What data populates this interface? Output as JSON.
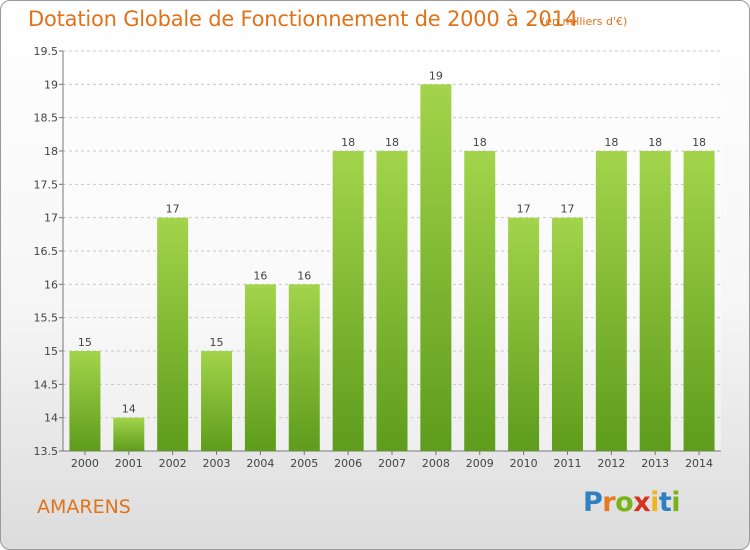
{
  "title": "Dotation Globale de Fonctionnement de 2000 à 2014",
  "subtitle": "(en milliers d'€)",
  "commune": "AMARENS",
  "logo": {
    "letters": [
      "P",
      "r",
      "o",
      "x",
      "i",
      "t",
      "i"
    ],
    "colors": [
      "#2f7fc1",
      "#e8791e",
      "#7ab317",
      "#d6321f",
      "#f2b41b",
      "#2f7fc1",
      "#7ab317"
    ]
  },
  "colors": {
    "text_orange": "#e0731a",
    "bar_light": "#a3d44b",
    "bar_dark": "#5e9c1c",
    "grid": "#c8c8c8"
  },
  "chart_data": {
    "type": "bar",
    "categories": [
      "2000",
      "2001",
      "2002",
      "2003",
      "2004",
      "2005",
      "2006",
      "2007",
      "2008",
      "2009",
      "2010",
      "2011",
      "2012",
      "2013",
      "2014"
    ],
    "values": [
      15,
      14,
      17,
      15,
      16,
      16,
      18,
      18,
      19,
      18,
      17,
      17,
      18,
      18,
      18
    ],
    "ylim": [
      13.5,
      19.5
    ],
    "yticks": [
      "13.5",
      "14",
      "14.5",
      "15",
      "15.5",
      "16",
      "16.5",
      "17",
      "17.5",
      "18",
      "18.5",
      "19",
      "19.5"
    ],
    "grid": "horizontal-dashed",
    "legend": "none"
  }
}
